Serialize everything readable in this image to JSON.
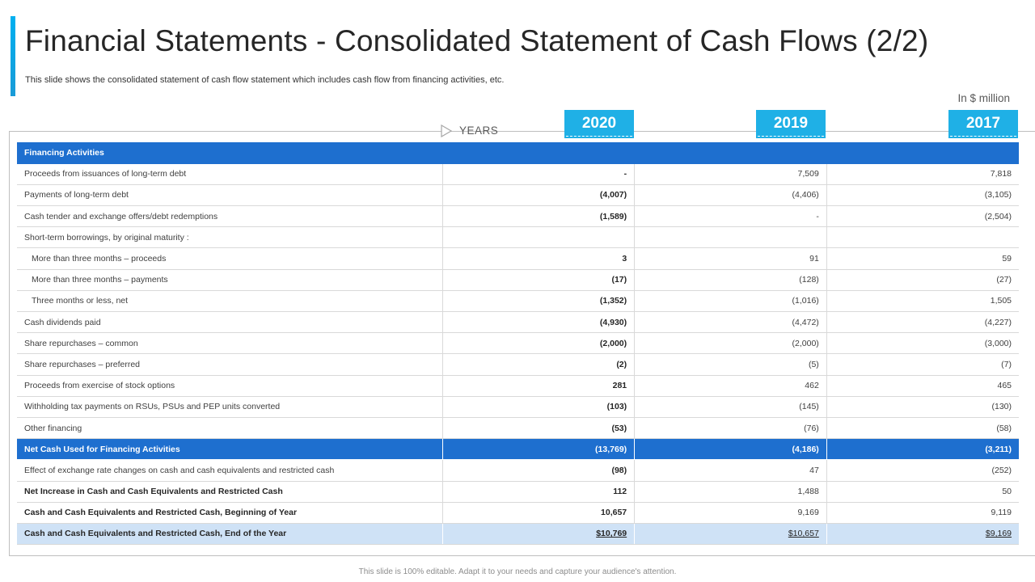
{
  "title": "Financial Statements - Consolidated Statement of Cash Flows (2/2)",
  "subtitle": "This slide shows the consolidated statement of cash flow statement which includes cash flow from financing activities, etc.",
  "unit_label": "In $ million",
  "years_label": "YEARS",
  "years": [
    "2020",
    "2019",
    "2017"
  ],
  "table": {
    "section_header": "Financing Activities",
    "rows": [
      {
        "label": "Proceeds from issuances of long-term debt",
        "v2020": "-",
        "v2019": "7,509",
        "v2017": "7,818"
      },
      {
        "label": "Payments of long-term debt",
        "v2020": "(4,007)",
        "v2019": "(4,406)",
        "v2017": "(3,105)"
      },
      {
        "label": "Cash tender and exchange offers/debt redemptions",
        "v2020": "(1,589)",
        "v2019": "-",
        "v2017": "(2,504)"
      },
      {
        "label": "Short-term borrowings, by original maturity :",
        "v2020": "",
        "v2019": "",
        "v2017": ""
      },
      {
        "label": "More than three months – proceeds",
        "v2020": "3",
        "v2019": "91",
        "v2017": "59"
      },
      {
        "label": "More than three months – payments",
        "v2020": "(17)",
        "v2019": "(128)",
        "v2017": "(27)"
      },
      {
        "label": "Three months or less, net",
        "v2020": "(1,352)",
        "v2019": "(1,016)",
        "v2017": "1,505"
      },
      {
        "label": "Cash dividends paid",
        "v2020": "(4,930)",
        "v2019": "(4,472)",
        "v2017": "(4,227)"
      },
      {
        "label": "Share repurchases – common",
        "v2020": "(2,000)",
        "v2019": "(2,000)",
        "v2017": "(3,000)"
      },
      {
        "label": "Share repurchases – preferred",
        "v2020": "(2)",
        "v2019": "(5)",
        "v2017": "(7)"
      },
      {
        "label": "Proceeds from exercise of stock options",
        "v2020": "281",
        "v2019": "462",
        "v2017": "465"
      },
      {
        "label": "Withholding tax payments on RSUs, PSUs and PEP units converted",
        "v2020": "(103)",
        "v2019": "(145)",
        "v2017": "(130)"
      },
      {
        "label": "Other financing",
        "v2020": "(53)",
        "v2019": "(76)",
        "v2017": "(58)"
      }
    ],
    "total": {
      "label": "Net Cash Used for Financing Activities",
      "v2020": "(13,769)",
      "v2019": "(4,186)",
      "v2017": "(3,211)"
    },
    "post_rows": [
      {
        "label": "Effect of exchange rate changes on cash and cash equivalents and restricted cash",
        "v2020": "(98)",
        "v2019": "47",
        "v2017": "(252)"
      },
      {
        "label": "Net Increase in Cash and Cash Equivalents and Restricted Cash",
        "v2020": "112",
        "v2019": "1,488",
        "v2017": "50"
      },
      {
        "label": "Cash and Cash Equivalents and Restricted Cash, Beginning of Year",
        "v2020": "10,657",
        "v2019": "9,169",
        "v2017": "9,119"
      }
    ],
    "final": {
      "label": "Cash and Cash Equivalents and Restricted Cash, End of the Year",
      "v2020": "$10,769",
      "v2019": "$10,657",
      "v2017": "$9,169"
    }
  },
  "footer": "This slide is 100% editable. Adapt it to your needs and capture your audience's attention.",
  "colors": {
    "accent": "#1fb0e6",
    "header_blue": "#1e6fcf",
    "final_row_bg": "#cfe2f6"
  }
}
